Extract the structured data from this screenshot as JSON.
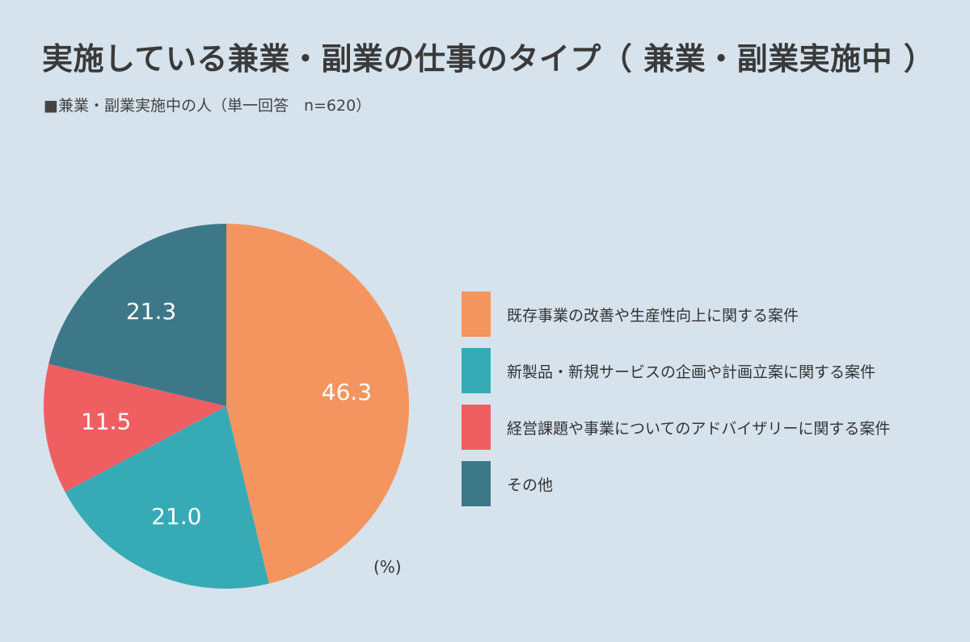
{
  "title": "実施している兼業・副業の仕事のタイプ（ 兼業・副業実施中 ）",
  "subtitle": "■兼業・副業実施中の人（単一回答　n=620）",
  "unit_note": "(%)",
  "colors": {
    "background": "#d6e3ed"
  },
  "chart_data": {
    "type": "pie",
    "start_angle_deg": 0,
    "direction": "clockwise",
    "legend_position": "right",
    "slices": [
      {
        "label": "既存事業の改善や生産性向上に関する案件",
        "value": 46.3,
        "display": "46.3",
        "color": "#f49560"
      },
      {
        "label": "新製品・新規サービスの企画や計画立案に関する案件",
        "value": 21.0,
        "display": "21.0",
        "color": "#36abb6"
      },
      {
        "label": "経営課題や事業についてのアドバイザリーに関する案件",
        "value": 11.5,
        "display": "11.5",
        "color": "#ef5f62"
      },
      {
        "label": "その他",
        "value": 21.3,
        "display": "21.3",
        "color": "#3d7889"
      }
    ]
  }
}
